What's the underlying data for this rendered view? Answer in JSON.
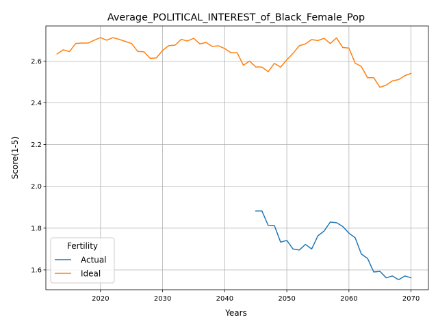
{
  "chart_data": {
    "type": "line",
    "title": "Average_POLITICAL_INTEREST_of_Black_Female_Pop",
    "xlabel": "Years",
    "ylabel": "Score(1-5)",
    "xlim": [
      2011.2,
      2072.8
    ],
    "ylim": [
      1.505,
      2.768
    ],
    "xticks": [
      2020,
      2030,
      2040,
      2050,
      2060,
      2070
    ],
    "yticks": [
      1.6,
      1.8,
      2.0,
      2.2,
      2.4,
      2.6
    ],
    "grid": true,
    "legend": {
      "title": "Fertility",
      "position": "lower-left"
    },
    "series": [
      {
        "name": "Actual",
        "color": "#1f77b4",
        "x": [
          2045,
          2046,
          2047,
          2048,
          2049,
          2050,
          2051,
          2052,
          2053,
          2054,
          2055,
          2056,
          2057,
          2058,
          2059,
          2060,
          2061,
          2062,
          2063,
          2064,
          2065,
          2066,
          2067,
          2068,
          2069,
          2070
        ],
        "y": [
          1.882,
          1.882,
          1.813,
          1.812,
          1.733,
          1.741,
          1.7,
          1.695,
          1.722,
          1.7,
          1.763,
          1.786,
          1.829,
          1.826,
          1.808,
          1.776,
          1.754,
          1.676,
          1.655,
          1.59,
          1.593,
          1.562,
          1.571,
          1.553,
          1.571,
          1.562
        ]
      },
      {
        "name": "Ideal",
        "color": "#ff7f0e",
        "x": [
          2013,
          2014,
          2015,
          2016,
          2017,
          2018,
          2019,
          2020,
          2021,
          2022,
          2023,
          2024,
          2025,
          2026,
          2027,
          2028,
          2029,
          2030,
          2031,
          2032,
          2033,
          2034,
          2035,
          2036,
          2037,
          2038,
          2039,
          2040,
          2041,
          2042,
          2043,
          2044,
          2045,
          2046,
          2047,
          2048,
          2049,
          2050,
          2051,
          2052,
          2053,
          2054,
          2055,
          2056,
          2057,
          2058,
          2059,
          2060,
          2061,
          2062,
          2063,
          2064,
          2065,
          2066,
          2067,
          2068,
          2069,
          2070
        ],
        "y": [
          2.634,
          2.654,
          2.645,
          2.684,
          2.686,
          2.686,
          2.7,
          2.712,
          2.7,
          2.712,
          2.704,
          2.694,
          2.684,
          2.646,
          2.644,
          2.613,
          2.615,
          2.651,
          2.674,
          2.676,
          2.704,
          2.696,
          2.709,
          2.682,
          2.689,
          2.67,
          2.673,
          2.66,
          2.64,
          2.64,
          2.58,
          2.6,
          2.572,
          2.571,
          2.549,
          2.589,
          2.571,
          2.606,
          2.637,
          2.673,
          2.682,
          2.703,
          2.698,
          2.709,
          2.684,
          2.711,
          2.665,
          2.662,
          2.59,
          2.574,
          2.52,
          2.52,
          2.474,
          2.485,
          2.505,
          2.511,
          2.53,
          2.541
        ]
      }
    ]
  }
}
